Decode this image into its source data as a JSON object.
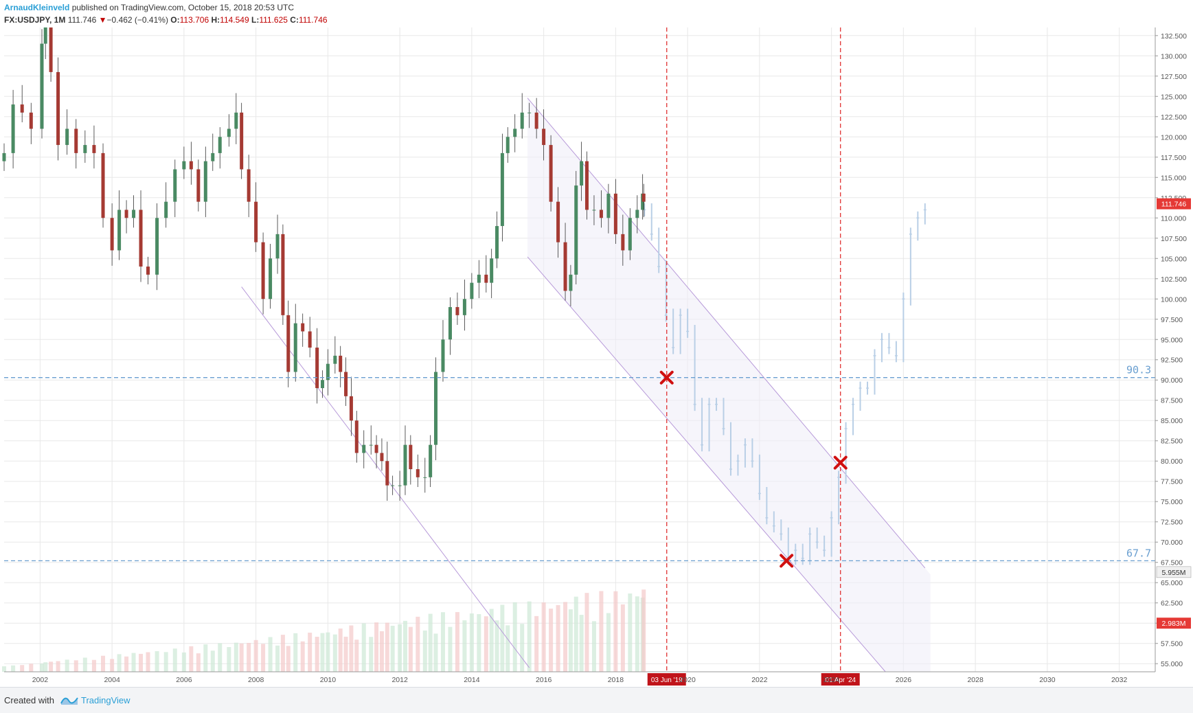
{
  "header": {
    "author": "ArnaudKleinveld",
    "published": " published on TradingView.com, October 15, 2018 20:53 UTC",
    "symbol": "FX:USDJPY, 1M",
    "last": "111.746",
    "change": "−0.462 (−0.41%)",
    "o_label": "O:",
    "o": "113.706",
    "h_label": "H:",
    "h": "114.549",
    "l_label": "L:",
    "l": "111.625",
    "c_label": "C:",
    "c": "111.746"
  },
  "footer": {
    "created_with": "Created with",
    "brand": "TradingView"
  },
  "colors": {
    "up": "#4a8a63",
    "down": "#a53a33",
    "projection": "#b9cfe6",
    "channel": "#b79ad9",
    "hline": "#6a9fd0",
    "vline": "#e03030",
    "marker": "#d01010",
    "price_badge": "#e53935",
    "grid": "#e8e8e8"
  },
  "chart_data": {
    "type": "candlestick",
    "symbol": "FX:USDJPY",
    "interval": "1M",
    "x_range": [
      2001.0,
      2033.0
    ],
    "y_range": [
      54.0,
      133.5
    ],
    "y_ticks": [
      "132.500",
      "130.000",
      "127.500",
      "125.000",
      "122.500",
      "120.000",
      "117.500",
      "115.000",
      "112.500",
      "110.000",
      "107.500",
      "105.000",
      "102.500",
      "100.000",
      "97.500",
      "95.000",
      "92.500",
      "90.000",
      "87.500",
      "85.000",
      "82.500",
      "80.000",
      "77.500",
      "75.000",
      "72.500",
      "70.000",
      "67.500",
      "65.000",
      "62.500",
      "60.000",
      "57.500",
      "55.000"
    ],
    "x_ticks": [
      "2002",
      "2004",
      "2006",
      "2008",
      "2010",
      "2012",
      "2014",
      "2016",
      "2018",
      "2020",
      "2022",
      "2024",
      "2026",
      "2028",
      "2030",
      "2032"
    ],
    "last_price_label": "111.746",
    "volume_labels": [
      "5.955M",
      "2.983M"
    ],
    "horizontal_levels": [
      {
        "value": 90.3,
        "label": "90.3"
      },
      {
        "value": 67.7,
        "label": "67.7"
      }
    ],
    "vertical_markers": [
      {
        "x": 2019.42,
        "label": "03 Jun '19"
      },
      {
        "x": 2024.25,
        "label": "01 Apr '24"
      }
    ],
    "cross_markers": [
      {
        "x": 2019.42,
        "y": 90.3
      },
      {
        "x": 2022.75,
        "y": 67.7
      },
      {
        "x": 2024.25,
        "y": 79.8
      }
    ],
    "channels": [
      {
        "lines": [
          [
            [
              2007.6,
              101.5
            ],
            [
              2015.6,
              54.5
            ]
          ]
        ]
      },
      {
        "lines": [
          [
            [
              2015.55,
              124.8
            ],
            [
              2026.6,
              66.8
            ]
          ],
          [
            [
              2015.55,
              105.2
            ],
            [
              2025.5,
              54.0
            ]
          ]
        ],
        "shaded_until": 2026.75
      }
    ],
    "series": [
      {
        "points": [
          [
            2001.0,
            118
          ],
          [
            2001.25,
            124
          ],
          [
            2001.5,
            123
          ],
          [
            2001.75,
            121
          ],
          [
            2002.05,
            131.5
          ],
          [
            2002.15,
            134
          ],
          [
            2002.3,
            128
          ],
          [
            2002.5,
            119
          ],
          [
            2002.75,
            121
          ],
          [
            2003.0,
            118
          ],
          [
            2003.25,
            119
          ],
          [
            2003.5,
            118
          ],
          [
            2003.75,
            110
          ],
          [
            2004.0,
            106
          ],
          [
            2004.2,
            111
          ],
          [
            2004.4,
            110
          ],
          [
            2004.6,
            111
          ],
          [
            2004.8,
            104
          ],
          [
            2005.0,
            103
          ],
          [
            2005.25,
            110
          ],
          [
            2005.5,
            112
          ],
          [
            2005.75,
            116
          ],
          [
            2006.0,
            117
          ],
          [
            2006.2,
            116
          ],
          [
            2006.4,
            112
          ],
          [
            2006.6,
            117
          ],
          [
            2006.8,
            118
          ],
          [
            2007.0,
            120
          ],
          [
            2007.25,
            121
          ],
          [
            2007.45,
            123
          ],
          [
            2007.6,
            116
          ],
          [
            2007.8,
            112
          ],
          [
            2008.0,
            107
          ],
          [
            2008.2,
            100
          ],
          [
            2008.4,
            105
          ],
          [
            2008.6,
            108
          ],
          [
            2008.75,
            98
          ],
          [
            2008.9,
            91
          ],
          [
            2009.1,
            97
          ],
          [
            2009.3,
            96
          ],
          [
            2009.5,
            94
          ],
          [
            2009.7,
            89
          ],
          [
            2009.85,
            90
          ],
          [
            2010.0,
            92
          ],
          [
            2010.2,
            93
          ],
          [
            2010.35,
            91
          ],
          [
            2010.5,
            88
          ],
          [
            2010.65,
            85
          ],
          [
            2010.8,
            81
          ],
          [
            2011.0,
            82
          ],
          [
            2011.2,
            82
          ],
          [
            2011.35,
            81
          ],
          [
            2011.5,
            80
          ],
          [
            2011.65,
            77
          ],
          [
            2011.8,
            77
          ],
          [
            2012.0,
            77
          ],
          [
            2012.15,
            82
          ],
          [
            2012.3,
            79
          ],
          [
            2012.5,
            78
          ],
          [
            2012.7,
            78
          ],
          [
            2012.85,
            82
          ],
          [
            2013.0,
            91
          ],
          [
            2013.2,
            95
          ],
          [
            2013.4,
            99
          ],
          [
            2013.6,
            98
          ],
          [
            2013.8,
            100
          ],
          [
            2014.0,
            102
          ],
          [
            2014.2,
            103
          ],
          [
            2014.4,
            102
          ],
          [
            2014.55,
            105
          ],
          [
            2014.7,
            109
          ],
          [
            2014.85,
            118
          ],
          [
            2015.0,
            120
          ],
          [
            2015.2,
            121
          ],
          [
            2015.4,
            123
          ],
          [
            2015.6,
            123
          ],
          [
            2015.8,
            121
          ],
          [
            2016.0,
            119
          ],
          [
            2016.2,
            112
          ],
          [
            2016.4,
            107
          ],
          [
            2016.6,
            101
          ],
          [
            2016.75,
            103
          ],
          [
            2016.9,
            114
          ],
          [
            2017.05,
            117
          ],
          [
            2017.2,
            111
          ],
          [
            2017.4,
            111
          ],
          [
            2017.6,
            110
          ],
          [
            2017.8,
            113
          ],
          [
            2018.0,
            108
          ],
          [
            2018.2,
            106
          ],
          [
            2018.4,
            110
          ],
          [
            2018.6,
            111
          ],
          [
            2018.75,
            113
          ],
          [
            2018.78,
            112
          ]
        ],
        "kind": "price"
      },
      {
        "points": [
          [
            2018.8,
            111
          ],
          [
            2019.0,
            108
          ],
          [
            2019.2,
            104
          ],
          [
            2019.4,
            98
          ],
          [
            2019.6,
            94
          ],
          [
            2019.8,
            98
          ],
          [
            2020.0,
            96
          ],
          [
            2020.2,
            87
          ],
          [
            2020.4,
            82
          ],
          [
            2020.6,
            87
          ],
          [
            2020.8,
            87
          ],
          [
            2021.0,
            84
          ],
          [
            2021.2,
            79
          ],
          [
            2021.4,
            80
          ],
          [
            2021.6,
            82
          ],
          [
            2021.8,
            80
          ],
          [
            2022.0,
            76
          ],
          [
            2022.2,
            73
          ],
          [
            2022.4,
            72
          ],
          [
            2022.6,
            71
          ],
          [
            2022.8,
            68
          ],
          [
            2023.0,
            69
          ],
          [
            2023.2,
            68
          ],
          [
            2023.4,
            71
          ],
          [
            2023.6,
            70
          ],
          [
            2023.8,
            69
          ],
          [
            2024.0,
            73
          ],
          [
            2024.2,
            78
          ],
          [
            2024.4,
            84
          ],
          [
            2024.6,
            87
          ],
          [
            2024.8,
            89
          ],
          [
            2025.0,
            89
          ],
          [
            2025.2,
            93
          ],
          [
            2025.4,
            95
          ],
          [
            2025.6,
            94
          ],
          [
            2025.8,
            93
          ],
          [
            2026.0,
            100
          ],
          [
            2026.2,
            108
          ],
          [
            2026.4,
            110
          ],
          [
            2026.6,
            111
          ]
        ],
        "kind": "projection"
      }
    ]
  }
}
